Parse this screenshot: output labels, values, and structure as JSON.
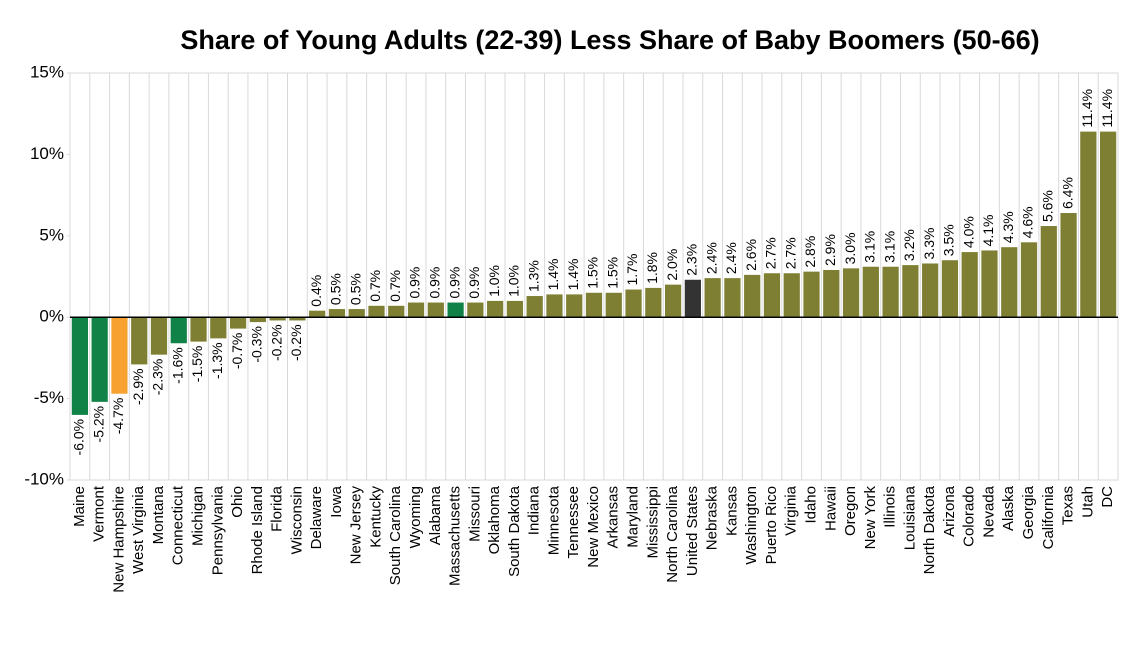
{
  "chart_data": {
    "type": "bar",
    "title": "Share of Young Adults (22-39) Less Share of Baby Boomers (50-66)",
    "categories": [
      "Maine",
      "Vermont",
      "New Hampshire",
      "West Virginia",
      "Montana",
      "Connecticut",
      "Michigan",
      "Pennsylvania",
      "Ohio",
      "Rhode Island",
      "Florida",
      "Wisconsin",
      "Delaware",
      "Iowa",
      "New Jersey",
      "Kentucky",
      "South Carolina",
      "Wyoming",
      "Alabama",
      "Massachusetts",
      "Missouri",
      "Oklahoma",
      "South Dakota",
      "Indiana",
      "Minnesota",
      "Tennessee",
      "New Mexico",
      "Arkansas",
      "Maryland",
      "Mississippi",
      "North Carolina",
      "United States",
      "Nebraska",
      "Kansas",
      "Washington",
      "Puerto Rico",
      "Virginia",
      "Idaho",
      "Hawaii",
      "Oregon",
      "New York",
      "Illinois",
      "Louisiana",
      "North Dakota",
      "Arizona",
      "Colorado",
      "Nevada",
      "Alaska",
      "Georgia",
      "California",
      "Texas",
      "Utah",
      "DC"
    ],
    "values": [
      -6.0,
      -5.2,
      -4.7,
      -2.9,
      -2.3,
      -1.6,
      -1.5,
      -1.3,
      -0.7,
      -0.3,
      -0.2,
      -0.2,
      0.4,
      0.5,
      0.5,
      0.7,
      0.7,
      0.9,
      0.9,
      0.9,
      0.9,
      1.0,
      1.0,
      1.3,
      1.4,
      1.4,
      1.5,
      1.5,
      1.7,
      1.8,
      2.0,
      2.3,
      2.4,
      2.4,
      2.6,
      2.7,
      2.7,
      2.8,
      2.9,
      3.0,
      3.1,
      3.1,
      3.2,
      3.3,
      3.5,
      4.0,
      4.1,
      4.3,
      4.6,
      5.6,
      6.4,
      11.4,
      11.4
    ],
    "value_labels": [
      "-6.0%",
      "-5.2%",
      "-4.7%",
      "-2.9%",
      "-2.3%",
      "-1.6%",
      "-1.5%",
      "-1.3%",
      "-0.7%",
      "-0.3%",
      "-0.2%",
      "-0.2%",
      "0.4%",
      "0.5%",
      "0.5%",
      "0.7%",
      "0.7%",
      "0.9%",
      "0.9%",
      "0.9%",
      "0.9%",
      "1.0%",
      "1.0%",
      "1.3%",
      "1.4%",
      "1.4%",
      "1.5%",
      "1.5%",
      "1.7%",
      "1.8%",
      "2.0%",
      "2.3%",
      "2.4%",
      "2.4%",
      "2.6%",
      "2.7%",
      "2.7%",
      "2.8%",
      "2.9%",
      "3.0%",
      "3.1%",
      "3.1%",
      "3.2%",
      "3.3%",
      "3.5%",
      "4.0%",
      "4.1%",
      "4.3%",
      "4.6%",
      "5.6%",
      "6.4%",
      "11.4%",
      "11.4%"
    ],
    "colors": [
      "#118247",
      "#118247",
      "#f7a130",
      "#7f7f33",
      "#7f7f33",
      "#118247",
      "#7f7f33",
      "#7f7f33",
      "#7f7f33",
      "#7f7f33",
      "#7f7f33",
      "#7f7f33",
      "#7f7f33",
      "#7f7f33",
      "#7f7f33",
      "#7f7f33",
      "#7f7f33",
      "#7f7f33",
      "#7f7f33",
      "#118247",
      "#7f7f33",
      "#7f7f33",
      "#7f7f33",
      "#7f7f33",
      "#7f7f33",
      "#7f7f33",
      "#7f7f33",
      "#7f7f33",
      "#7f7f33",
      "#7f7f33",
      "#7f7f33",
      "#333333",
      "#7f7f33",
      "#7f7f33",
      "#7f7f33",
      "#7f7f33",
      "#7f7f33",
      "#7f7f33",
      "#7f7f33",
      "#7f7f33",
      "#7f7f33",
      "#7f7f33",
      "#7f7f33",
      "#7f7f33",
      "#7f7f33",
      "#7f7f33",
      "#7f7f33",
      "#7f7f33",
      "#7f7f33",
      "#7f7f33",
      "#7f7f33",
      "#7f7f33",
      "#7f7f33"
    ],
    "ylim": [
      -10,
      15
    ],
    "yticks": [
      {
        "value": -10,
        "label": "-10%"
      },
      {
        "value": -5,
        "label": "-5%"
      },
      {
        "value": 0,
        "label": "0%"
      },
      {
        "value": 5,
        "label": "5%"
      },
      {
        "value": 10,
        "label": "10%"
      },
      {
        "value": 15,
        "label": "15%"
      }
    ]
  }
}
